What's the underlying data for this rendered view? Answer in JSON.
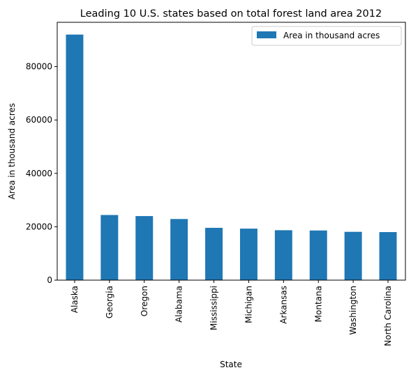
{
  "chart_data": {
    "type": "bar",
    "title": "Leading 10 U.S. states based on total forest land area 2012",
    "xlabel": "State",
    "ylabel": "Area in thousand acres",
    "categories": [
      "Alaska",
      "Georgia",
      "Oregon",
      "Alabama",
      "Mississippi",
      "Michigan",
      "Arkansas",
      "Montana",
      "Washington",
      "North Carolina"
    ],
    "series": [
      {
        "name": "Area in thousand acres",
        "values": [
          92000,
          24400,
          24000,
          22900,
          19600,
          19300,
          18700,
          18600,
          18100,
          18000
        ],
        "color": "#1f77b4"
      }
    ],
    "ylim": [
      0,
      96600
    ],
    "yticks": [
      0,
      20000,
      40000,
      60000,
      80000
    ],
    "ytick_labels": [
      "0",
      "20000",
      "40000",
      "60000",
      "80000"
    ],
    "grid": false,
    "legend": "top-right"
  }
}
